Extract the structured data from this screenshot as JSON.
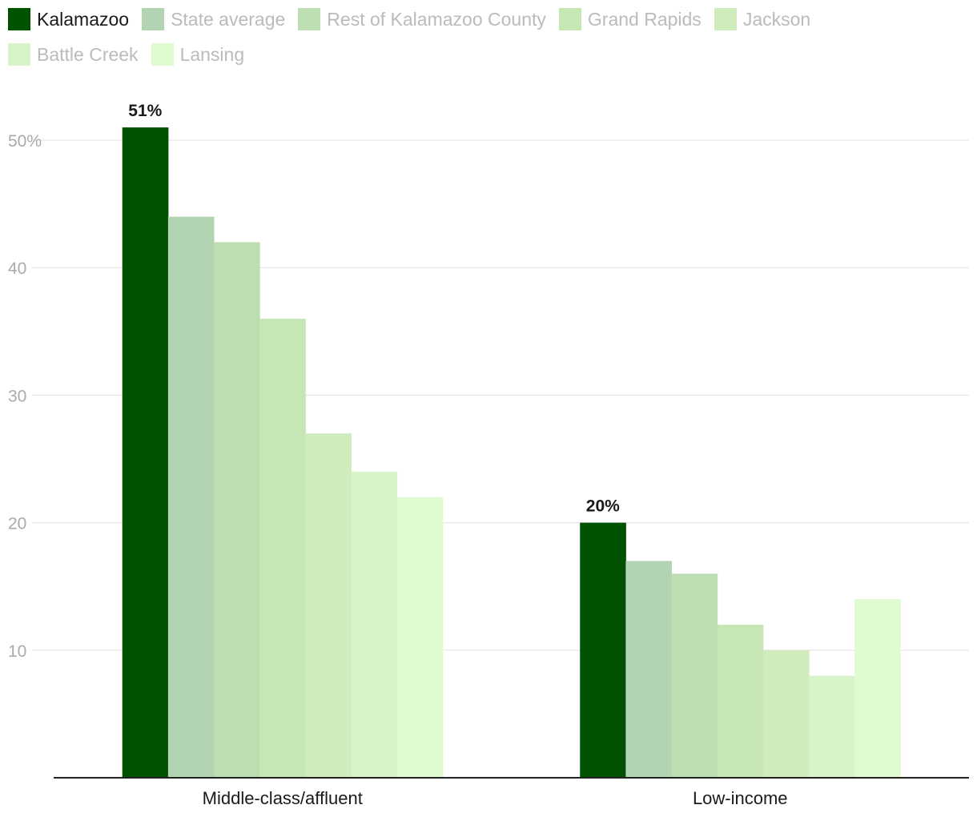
{
  "chart_data": {
    "type": "bar",
    "title": "",
    "xlabel": "",
    "ylabel": "",
    "ylim": [
      0,
      50
    ],
    "yticks": [
      10,
      20,
      30,
      40,
      50
    ],
    "ytick_labels": [
      "10",
      "20",
      "30",
      "40",
      "50%"
    ],
    "grid": true,
    "legend_position": "top-left",
    "categories": [
      "Middle-class/affluent",
      "Low-income"
    ],
    "series": [
      {
        "name": "Kalamazoo",
        "values": [
          51,
          20
        ],
        "color": "#005200",
        "data_labels": [
          "51%",
          "20%"
        ],
        "active": true
      },
      {
        "name": "State average",
        "values": [
          44,
          17
        ],
        "color": "#b3d4b3"
      },
      {
        "name": "Rest of Kalamazoo County",
        "values": [
          42,
          16
        ],
        "color": "#bcdeb2"
      },
      {
        "name": "Grand Rapids",
        "values": [
          36,
          12
        ],
        "color": "#c6e6b6"
      },
      {
        "name": "Jackson",
        "values": [
          27,
          10
        ],
        "color": "#d0ebbc"
      },
      {
        "name": "Battle Creek",
        "values": [
          24,
          8
        ],
        "color": "#d8f3c8"
      },
      {
        "name": "Lansing",
        "values": [
          22,
          14
        ],
        "color": "#e0fbcf"
      }
    ]
  }
}
